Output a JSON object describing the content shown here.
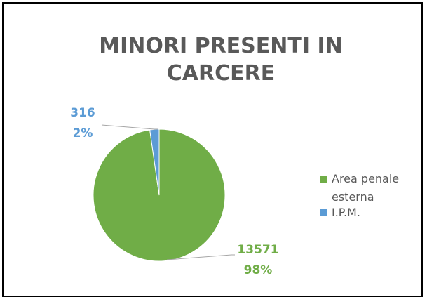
{
  "chart_data": {
    "type": "pie",
    "title": "MINORI PRESENTI IN CARCERE",
    "categories": [
      "Area penale esterna",
      "I.P.M."
    ],
    "values": [
      13571,
      316
    ],
    "percent_labels": [
      "98%",
      "2%"
    ],
    "colors": [
      "#70ad47",
      "#5b9bd5"
    ],
    "legend": "right"
  }
}
